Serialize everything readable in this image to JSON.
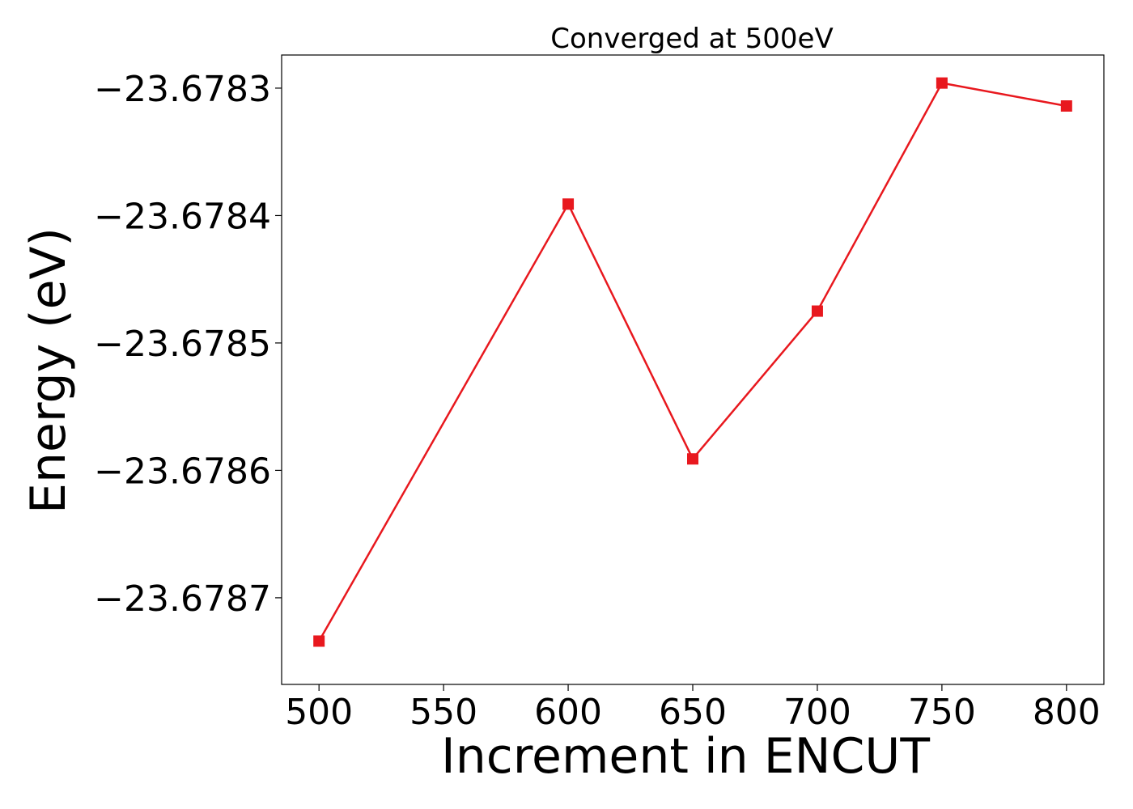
{
  "chart_data": {
    "type": "line",
    "title": "Converged at 500eV",
    "xlabel": "Increment in ENCUT",
    "ylabel": "Energy (eV)",
    "x": [
      500,
      600,
      650,
      700,
      750,
      800
    ],
    "series": [
      {
        "color": "#e8181e",
        "marker": "square",
        "values": [
          -23.678734,
          -23.678391,
          -23.678591,
          -23.678475,
          -23.678296,
          -23.678314
        ]
      }
    ],
    "xticks": [
      500,
      550,
      600,
      650,
      700,
      750,
      800
    ],
    "xtick_labels": [
      "500",
      "550",
      "600",
      "650",
      "700",
      "750",
      "800"
    ],
    "yticks": [
      -23.6783,
      -23.6784,
      -23.6785,
      -23.6786,
      -23.6787
    ],
    "ytick_labels": [
      "−23.6783",
      "−23.6784",
      "−23.6785",
      "−23.6786",
      "−23.6787"
    ],
    "xlim": [
      485,
      815
    ],
    "ylim": [
      -23.678768,
      -23.678274
    ],
    "grid": false,
    "legend": "none"
  }
}
